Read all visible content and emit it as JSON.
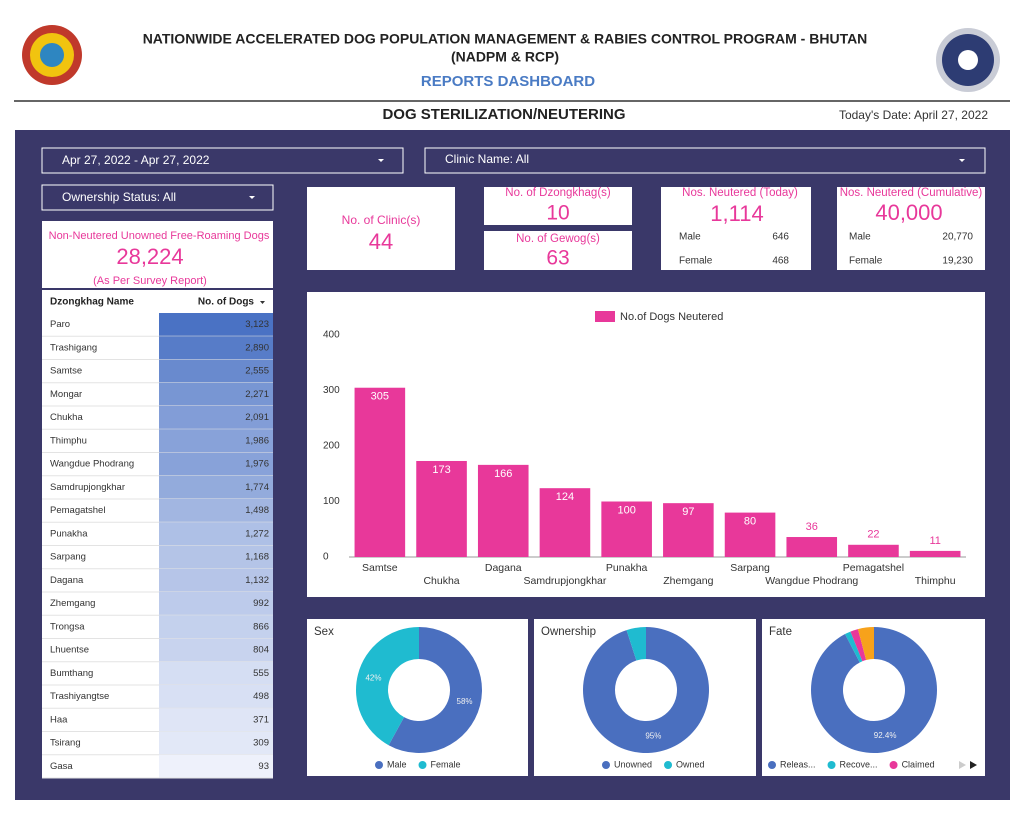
{
  "header": {
    "title_line1": "NATIONWIDE ACCELERATED DOG POPULATION MANAGEMENT & RABIES CONTROL PROGRAM - BHUTAN",
    "title_line2": "(NADPM & RCP)",
    "subtitle": "REPORTS DASHBOARD",
    "section": "DOG STERILIZATION/NEUTERING",
    "date": "Today's Date: April 27, 2022"
  },
  "filters": {
    "date_range": "Apr 27, 2022 - Apr 27, 2022",
    "clinic": "Clinic Name: All",
    "ownership": "Ownership Status: All"
  },
  "kpis": {
    "non_neutered": {
      "label": "Non-Neutered Unowned Free-Roaming Dogs",
      "value": "28,224",
      "note": "(As Per Survey Report)"
    },
    "clinics": {
      "label": "No. of Clinic(s)",
      "value": "44"
    },
    "dzongkhags": {
      "label": "No. of Dzongkhag(s)",
      "value": "10"
    },
    "gewogs": {
      "label": "No. of Gewog(s)",
      "value": "63"
    },
    "today": {
      "label": "Nos. Neutered (Today)",
      "value": "1,114",
      "male_label": "Male",
      "male": "646",
      "female_label": "Female",
      "female": "468"
    },
    "cumulative": {
      "label": "Nos. Neutered (Cumulative)",
      "value": "40,000",
      "male_label": "Male",
      "male": "20,770",
      "female_label": "Female",
      "female": "19,230"
    }
  },
  "table": {
    "header": [
      "Dzongkhag Name",
      "No. of Dogs"
    ],
    "rows": [
      [
        "Paro",
        "3,123"
      ],
      [
        "Trashigang",
        "2,890"
      ],
      [
        "Samtse",
        "2,555"
      ],
      [
        "Mongar",
        "2,271"
      ],
      [
        "Chukha",
        "2,091"
      ],
      [
        "Thimphu",
        "1,986"
      ],
      [
        "Wangdue Phodrang",
        "1,976"
      ],
      [
        "Samdrupjongkhar",
        "1,774"
      ],
      [
        "Pemagatshel",
        "1,498"
      ],
      [
        "Punakha",
        "1,272"
      ],
      [
        "Sarpang",
        "1,168"
      ],
      [
        "Dagana",
        "1,132"
      ],
      [
        "Zhemgang",
        "992"
      ],
      [
        "Trongsa",
        "866"
      ],
      [
        "Lhuentse",
        "804"
      ],
      [
        "Bumthang",
        "555"
      ],
      [
        "Trashiyangtse",
        "498"
      ],
      [
        "Haa",
        "371"
      ],
      [
        "Tsirang",
        "309"
      ],
      [
        "Gasa",
        "93"
      ]
    ]
  },
  "chart_data": [
    {
      "type": "bar",
      "categories": [
        "Samtse",
        "Chukha",
        "Dagana",
        "Samdrupjongkhar",
        "Punakha",
        "Zhemgang",
        "Sarpang",
        "Wangdue Phodrang",
        "Pemagatshel",
        "Thimphu"
      ],
      "series": [
        {
          "name": "No.of Dogs Neutered",
          "color": "#e8389a",
          "values": [
            305,
            173,
            166,
            124,
            100,
            97,
            80,
            36,
            22,
            11
          ]
        }
      ],
      "ylim": [
        0,
        400
      ],
      "yticks": [
        0,
        100,
        200,
        300,
        400
      ]
    },
    {
      "type": "pie",
      "title": "Sex",
      "categories": [
        "Male",
        "Female"
      ],
      "values": [
        58,
        42
      ],
      "value_labels": [
        "58%",
        "42%"
      ],
      "colors": [
        "#4a6fbf",
        "#1fbbd0"
      ]
    },
    {
      "type": "pie",
      "title": "Ownership",
      "categories": [
        "Unowned",
        "Owned"
      ],
      "values": [
        95,
        5
      ],
      "value_labels": [
        "95%",
        null
      ],
      "colors": [
        "#4a6fbf",
        "#1fbbd0"
      ]
    },
    {
      "type": "pie",
      "title": "Fate",
      "categories": [
        "Releas...",
        "Recove...",
        "Claimed",
        null
      ],
      "values": [
        92.4,
        1.5,
        2.0,
        4.1
      ],
      "value_labels": [
        "92.4%",
        null,
        null,
        null
      ],
      "colors": [
        "#4a6fbf",
        "#1fbbd0",
        "#e8389a",
        "#f7a21b"
      ]
    }
  ]
}
